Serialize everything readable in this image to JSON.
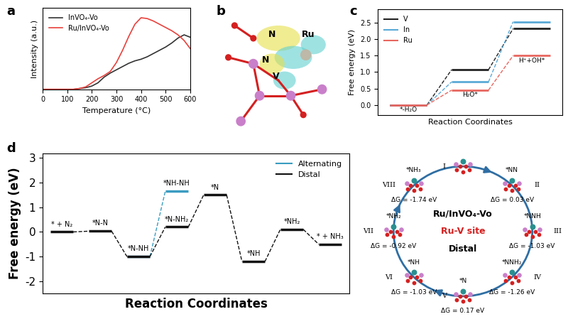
{
  "chart_data": [
    {
      "panel_label": "a",
      "type": "line",
      "x": [
        0,
        25,
        50,
        75,
        100,
        125,
        150,
        175,
        200,
        225,
        250,
        275,
        300,
        325,
        350,
        375,
        400,
        425,
        450,
        475,
        500,
        525,
        550,
        575,
        600
      ],
      "series": [
        {
          "name": "InVO₄-Vo",
          "color": "#333333",
          "values": [
            0,
            0,
            0,
            0,
            0,
            0,
            0.01,
            0.02,
            0.04,
            0.08,
            0.15,
            0.2,
            0.24,
            0.28,
            0.32,
            0.35,
            0.37,
            0.4,
            0.44,
            0.48,
            0.52,
            0.57,
            0.63,
            0.67,
            0.64
          ]
        },
        {
          "name": "Ru/InVO₄-Vo",
          "color": "#e8413c",
          "values": [
            0,
            0,
            0,
            0,
            0,
            0,
            0.01,
            0.03,
            0.08,
            0.13,
            0.17,
            0.22,
            0.33,
            0.48,
            0.65,
            0.8,
            0.88,
            0.87,
            0.84,
            0.8,
            0.76,
            0.72,
            0.67,
            0.6,
            0.5
          ]
        }
      ],
      "x_label": "Temperature (°C)",
      "y_label": "Intensity (a.u.)",
      "xlim": [
        0,
        600
      ],
      "xticks": [
        0,
        100,
        200,
        300,
        400,
        500,
        600
      ],
      "ylim": [
        0,
        1
      ],
      "yticks": [],
      "tick_labels": "x",
      "legend": "upper left"
    },
    {
      "panel_label": "c",
      "type": "step",
      "step_labels": [
        "*-H₂O",
        "H₂O*",
        "H⁺+OH*"
      ],
      "series": [
        {
          "name": "V",
          "color": "#222222",
          "values": [
            0,
            1.07,
            2.32
          ]
        },
        {
          "name": "In",
          "color": "#5aa9d6",
          "values": [
            0,
            0.7,
            2.53
          ]
        },
        {
          "name": "Ru",
          "color": "#e8665f",
          "values": [
            0,
            0.45,
            1.5
          ]
        }
      ],
      "x_label": "Reaction Coordinates",
      "y_label": "Free energy (eV)",
      "ylim": [
        -0.3,
        2.9
      ],
      "yticks": [
        0.0,
        0.5,
        1.0,
        1.5,
        2.0,
        2.5
      ],
      "tick_labels": "y",
      "legend": "upper left",
      "line_style": "dashed"
    },
    {
      "panel_label": "d",
      "type": "step",
      "series": [
        {
          "name": "Alternating",
          "color": "#3a9cc0",
          "values": [
            null,
            null,
            -1.0,
            1.65,
            null,
            null,
            null,
            null
          ],
          "step_labels": [
            null,
            null,
            null,
            "*NH-NH",
            null,
            null,
            null,
            null
          ]
        },
        {
          "name": "Distal",
          "color": "#111111",
          "values": [
            0,
            0.03,
            -1.0,
            0.2,
            1.5,
            -1.2,
            0.1,
            -0.5
          ],
          "step_labels": [
            "* + N₂",
            "*N-N",
            "*N-NH",
            "*N-NH₂",
            "*N",
            "*NH",
            "*NH₂",
            "* + NH₃"
          ]
        }
      ],
      "x_label": "Reaction Coordinates",
      "y_label": "Free energy (eV)",
      "ylim": [
        -2.5,
        3.2
      ],
      "yticks": [
        -2,
        -1,
        0,
        1,
        2,
        3
      ],
      "tick_labels": "y",
      "legend": "upper right",
      "line_style": "dashed"
    }
  ],
  "structure_panel": {
    "panel_label": "b",
    "atom_labels": [
      "N",
      "N",
      "Ru",
      "V"
    ]
  },
  "cycle_diagram": {
    "title": "Ru/InVO₄-Vo",
    "subtitle": "Ru-V site",
    "path": "Distal",
    "nodes": [
      {
        "numeral": "I"
      },
      {
        "numeral": "II",
        "label": "*NN",
        "delta_g_text": "ΔG = 0.03 eV"
      },
      {
        "numeral": "III",
        "label": "*NNH",
        "delta_g_text": "ΔG = -1.03 eV"
      },
      {
        "numeral": "IV",
        "label": "*NNH₂",
        "delta_g_text": "ΔG = -1.26 eV"
      },
      {
        "numeral": "V",
        "label": "*N",
        "delta_g_text": "ΔG = 0.17 eV"
      },
      {
        "numeral": "VI",
        "label": "*NH",
        "delta_g_text": "ΔG = -1.03 eV"
      },
      {
        "numeral": "VII",
        "label": "*NH₂",
        "delta_g_text": "ΔG = -0.92 eV"
      },
      {
        "numeral": "VIII",
        "label": "*NH₃",
        "delta_g_text": "ΔG = -1.74 eV"
      }
    ]
  }
}
